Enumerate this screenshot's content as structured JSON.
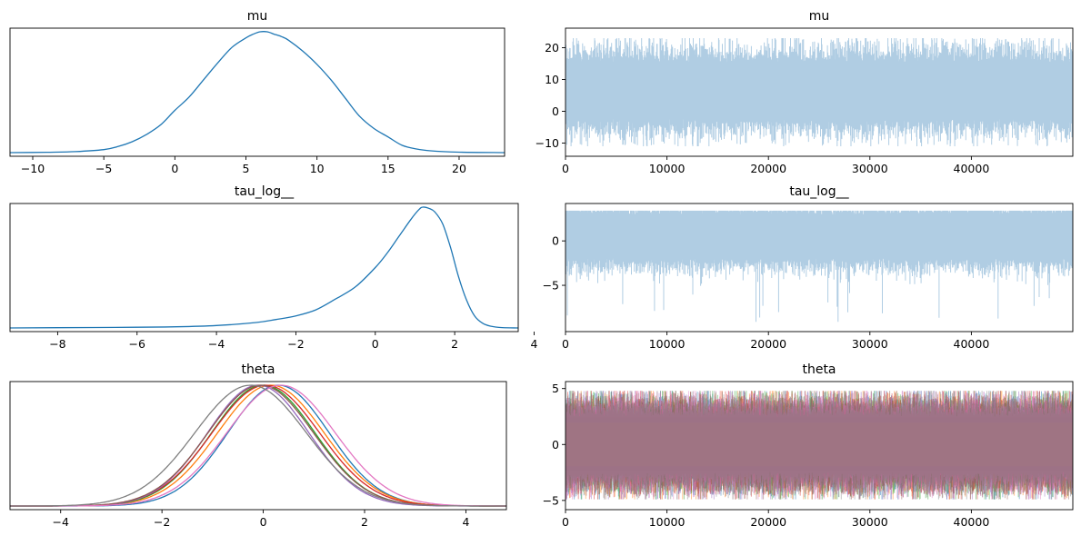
{
  "chart_data": [
    {
      "type": "line",
      "panel": "posterior-density",
      "title": "mu",
      "xticks": [
        -10,
        -5,
        0,
        5,
        10,
        15,
        20
      ],
      "xlim": [
        -11.6,
        23.2
      ],
      "ylim": [
        0,
        1
      ],
      "series": [
        {
          "color": "#1f77b4",
          "x": [
            -11.6,
            -9,
            -7,
            -5,
            -4,
            -3,
            -2,
            -1,
            0,
            1,
            2,
            3,
            4,
            5,
            5.5,
            6,
            6.5,
            7,
            7.5,
            8,
            9,
            10,
            11,
            12,
            13,
            14,
            15,
            16,
            17,
            18,
            20,
            23.2
          ],
          "y": [
            0.0,
            0.003,
            0.008,
            0.025,
            0.05,
            0.09,
            0.15,
            0.23,
            0.35,
            0.46,
            0.6,
            0.74,
            0.87,
            0.95,
            0.98,
            1.0,
            1.0,
            0.98,
            0.96,
            0.93,
            0.84,
            0.73,
            0.6,
            0.45,
            0.3,
            0.2,
            0.13,
            0.06,
            0.03,
            0.015,
            0.004,
            0.0
          ]
        }
      ]
    },
    {
      "type": "line",
      "panel": "trace",
      "title": "mu",
      "xticks": [
        0,
        10000,
        20000,
        30000,
        40000
      ],
      "yticks": [
        -10,
        0,
        10,
        20
      ],
      "xlim": [
        0,
        50000
      ],
      "ylim": [
        -13,
        25
      ],
      "band": {
        "center": 6.5,
        "typical_low": -3,
        "typical_high": 16,
        "max": 23,
        "min": -11
      },
      "series": [
        {
          "color": "#1f77b4",
          "alpha": 0.35,
          "n_draws": 50000
        }
      ]
    },
    {
      "type": "line",
      "panel": "posterior-density",
      "title": "tau_log__",
      "xticks": [
        -8,
        -6,
        -4,
        -2,
        0,
        2,
        4
      ],
      "xlim": [
        -9.2,
        3.6
      ],
      "ylim": [
        0,
        1
      ],
      "series": [
        {
          "color": "#1f77b4",
          "x": [
            -9.2,
            -8,
            -6,
            -5,
            -4,
            -3,
            -2.5,
            -2,
            -1.5,
            -1,
            -0.5,
            0,
            0.3,
            0.6,
            0.9,
            1.1,
            1.2,
            1.35,
            1.5,
            1.7,
            1.9,
            2.1,
            2.3,
            2.5,
            2.7,
            2.9,
            3.2,
            3.6
          ],
          "y": [
            0.0,
            0.002,
            0.006,
            0.01,
            0.02,
            0.045,
            0.07,
            0.1,
            0.15,
            0.24,
            0.34,
            0.5,
            0.62,
            0.76,
            0.9,
            0.98,
            1.0,
            0.99,
            0.96,
            0.86,
            0.66,
            0.42,
            0.23,
            0.1,
            0.04,
            0.015,
            0.003,
            0.0
          ]
        }
      ]
    },
    {
      "type": "line",
      "panel": "trace",
      "title": "tau_log__",
      "xticks": [
        0,
        10000,
        20000,
        30000,
        40000
      ],
      "yticks": [
        -5,
        0
      ],
      "xlim": [
        0,
        50000
      ],
      "ylim": [
        -9.8,
        3.8
      ],
      "band": {
        "center": 0.5,
        "typical_low": -2.5,
        "typical_high": 2.7,
        "max": 3.4,
        "min": -9.2
      },
      "series": [
        {
          "color": "#1f77b4",
          "alpha": 0.35,
          "n_draws": 50000
        }
      ]
    },
    {
      "type": "line",
      "panel": "posterior-density",
      "title": "theta",
      "xticks": [
        -4,
        -2,
        0,
        2,
        4
      ],
      "xlim": [
        -5,
        4.8
      ],
      "ylim": [
        0,
        1
      ],
      "series": [
        {
          "color": "#1f77b4",
          "mu": 0.3,
          "sigma": 1.0
        },
        {
          "color": "#ff7f0e",
          "mu": 0.15,
          "sigma": 1.05
        },
        {
          "color": "#2ca02c",
          "mu": 0.0,
          "sigma": 1.02
        },
        {
          "color": "#d62728",
          "mu": 0.05,
          "sigma": 1.06
        },
        {
          "color": "#9467bd",
          "mu": -0.1,
          "sigma": 1.0
        },
        {
          "color": "#8c564b",
          "mu": -0.05,
          "sigma": 1.04
        },
        {
          "color": "#e377c2",
          "mu": 0.35,
          "sigma": 1.07
        },
        {
          "color": "#7f7f7f",
          "mu": -0.25,
          "sigma": 1.1
        }
      ]
    },
    {
      "type": "line",
      "panel": "trace",
      "title": "theta",
      "xticks": [
        0,
        10000,
        20000,
        30000,
        40000
      ],
      "yticks": [
        -5,
        0,
        5
      ],
      "xlim": [
        0,
        50000
      ],
      "ylim": [
        -5.5,
        5.3
      ],
      "band": {
        "center": 0.0,
        "typical_low": -2.6,
        "typical_high": 2.6,
        "max": 4.8,
        "min": -4.9
      },
      "fill": "#a07483",
      "series": [
        {
          "color": "#1f77b4",
          "alpha": 0.35
        },
        {
          "color": "#ff7f0e",
          "alpha": 0.35
        },
        {
          "color": "#2ca02c",
          "alpha": 0.35
        },
        {
          "color": "#d62728",
          "alpha": 0.35
        },
        {
          "color": "#9467bd",
          "alpha": 0.35
        },
        {
          "color": "#8c564b",
          "alpha": 0.35
        },
        {
          "color": "#e377c2",
          "alpha": 0.35
        },
        {
          "color": "#7f7f7f",
          "alpha": 0.35
        }
      ]
    }
  ]
}
